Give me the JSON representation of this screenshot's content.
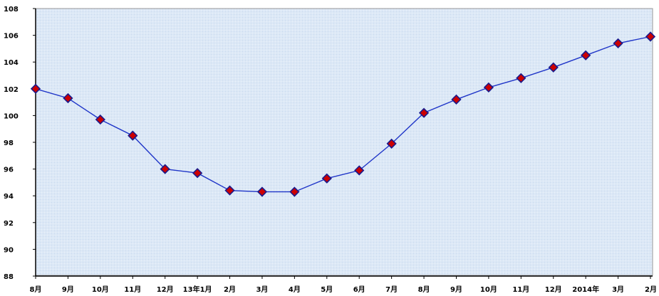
{
  "chart_data": {
    "type": "line",
    "title": "",
    "xlabel": "",
    "ylabel": "",
    "categories": [
      "8月",
      "9月",
      "10月",
      "11月",
      "12月",
      "13年1月",
      "2月",
      "3月",
      "4月",
      "5月",
      "6月",
      "7月",
      "8月",
      "9月",
      "10月",
      "11月",
      "12月",
      "2014年",
      "3月",
      "2月"
    ],
    "values": [
      102,
      101.3,
      99.7,
      98.5,
      96,
      95.7,
      94.4,
      94.3,
      94.3,
      95.3,
      95.9,
      97.9,
      100.2,
      101.2,
      102.1,
      102.8,
      103.6,
      104.5,
      105.4,
      105.9
    ],
    "y_tick_labels": [
      "88",
      "90",
      "92",
      "94",
      "96",
      "98",
      "100",
      "102",
      "104",
      "106",
      "108"
    ],
    "ylim": [
      88,
      108
    ],
    "grid": false,
    "legend": "none",
    "colors": {
      "background": "#dce8f6",
      "line": "#1f35c8",
      "marker_fill": "#cc0000",
      "marker_edge": "#1a1a8c"
    }
  }
}
